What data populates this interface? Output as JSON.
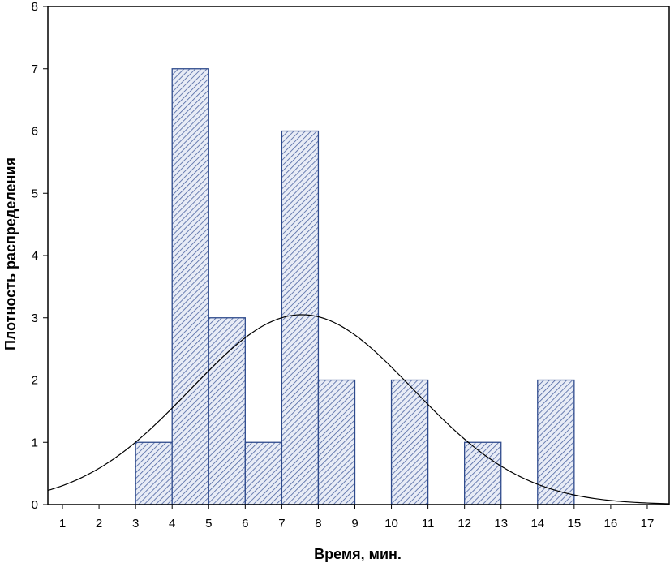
{
  "chart_data": {
    "type": "bar",
    "title": "",
    "xlabel": "Время, мин.",
    "ylabel": "Плотность распределения",
    "xlim": [
      0.6,
      17.6
    ],
    "ylim": [
      0,
      8
    ],
    "x_ticks": [
      1,
      2,
      3,
      4,
      5,
      6,
      7,
      8,
      9,
      10,
      11,
      12,
      13,
      14,
      15,
      16,
      17
    ],
    "y_ticks": [
      0,
      1,
      2,
      3,
      4,
      5,
      6,
      7,
      8
    ],
    "grid": false,
    "legend": "none",
    "bins": [
      {
        "x0": 3,
        "x1": 4,
        "value": 1
      },
      {
        "x0": 4,
        "x1": 5,
        "value": 7
      },
      {
        "x0": 5,
        "x1": 6,
        "value": 3
      },
      {
        "x0": 6,
        "x1": 7,
        "value": 1
      },
      {
        "x0": 7,
        "x1": 8,
        "value": 6
      },
      {
        "x0": 8,
        "x1": 9,
        "value": 2
      },
      {
        "x0": 10,
        "x1": 11,
        "value": 2
      },
      {
        "x0": 12,
        "x1": 13,
        "value": 1
      },
      {
        "x0": 14,
        "x1": 15,
        "value": 2
      }
    ],
    "fitted_curve": {
      "type": "normal",
      "mean": 7.55,
      "sd": 3.05,
      "peak": 3.05,
      "x_range": [
        0.6,
        17.6
      ]
    },
    "colors": {
      "bar_stroke": "#2e4a8c",
      "bar_hatch": "#4a62a0",
      "bar_fill": "#e8ecf6",
      "curve": "#000000",
      "axis": "#000000"
    }
  }
}
